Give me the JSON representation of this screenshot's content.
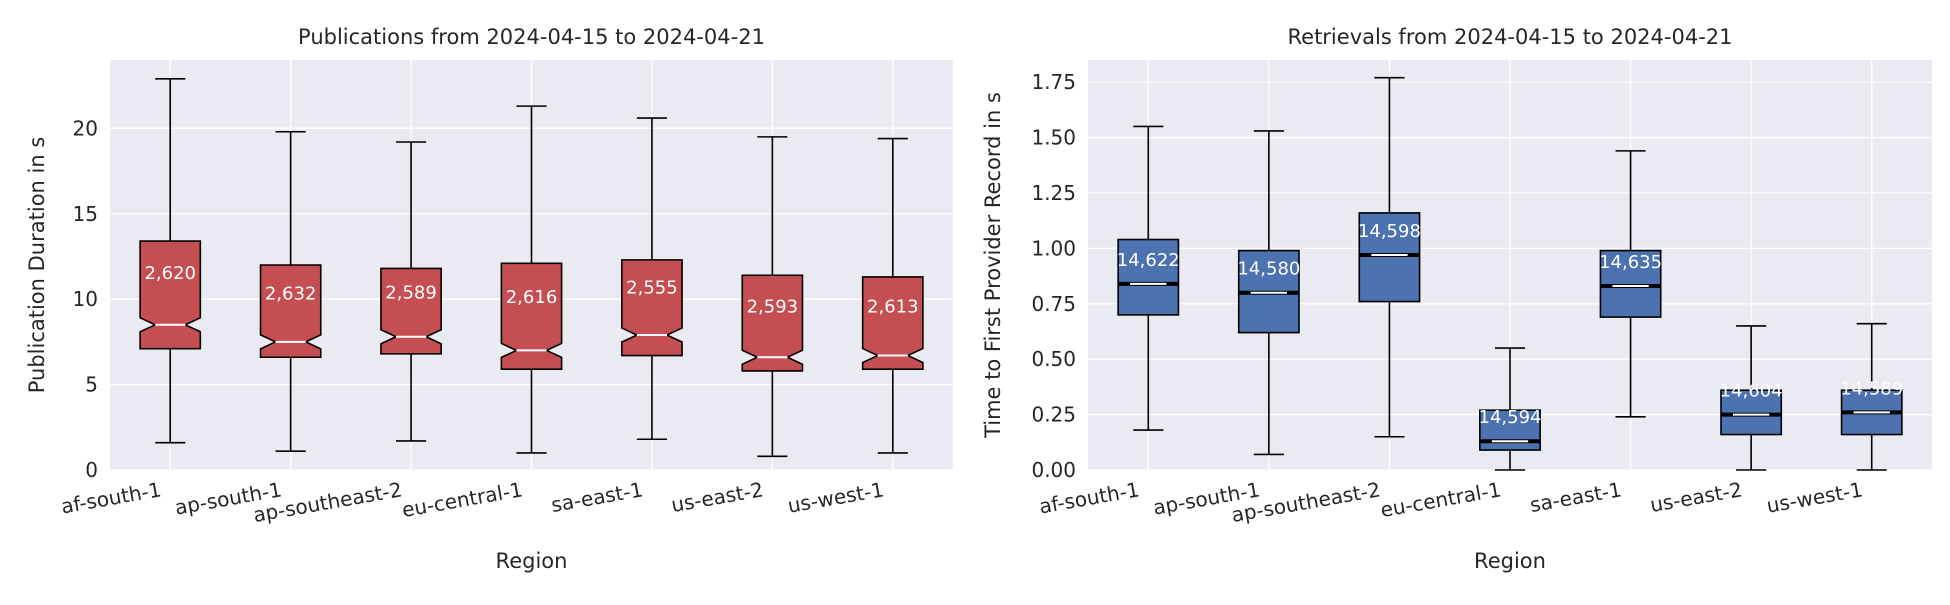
{
  "chart_data": [
    {
      "type": "boxplot",
      "title": "Publications from 2024-04-15 to 2024-04-21",
      "xlabel": "Region",
      "ylabel": "Publication Duration in s",
      "ylim": [
        0,
        24
      ],
      "yticks": [
        0,
        5,
        10,
        15,
        20
      ],
      "ytick_labels": [
        "0",
        "5",
        "10",
        "15",
        "20"
      ],
      "grid": true,
      "notched": true,
      "box_color": "#c44e52",
      "median_color": "#ffffff",
      "label_color": "#ffffff",
      "categories": [
        "af-south-1",
        "ap-south-1",
        "ap-southeast-2",
        "eu-central-1",
        "sa-east-1",
        "us-east-2",
        "us-west-1"
      ],
      "boxes": [
        {
          "whislo": 1.6,
          "q1": 7.1,
          "med": 8.5,
          "q3": 13.4,
          "whishi": 22.9,
          "count": "2,620"
        },
        {
          "whislo": 1.1,
          "q1": 6.6,
          "med": 7.5,
          "q3": 12.0,
          "whishi": 19.8,
          "count": "2,632"
        },
        {
          "whislo": 1.7,
          "q1": 6.8,
          "med": 7.8,
          "q3": 11.8,
          "whishi": 19.2,
          "count": "2,589"
        },
        {
          "whislo": 1.0,
          "q1": 5.9,
          "med": 7.0,
          "q3": 12.1,
          "whishi": 21.3,
          "count": "2,616"
        },
        {
          "whislo": 1.8,
          "q1": 6.7,
          "med": 7.9,
          "q3": 12.3,
          "whishi": 20.6,
          "count": "2,555"
        },
        {
          "whislo": 0.8,
          "q1": 5.8,
          "med": 6.6,
          "q3": 11.4,
          "whishi": 19.5,
          "count": "2,593"
        },
        {
          "whislo": 1.0,
          "q1": 5.9,
          "med": 6.7,
          "q3": 11.3,
          "whishi": 19.4,
          "count": "2,613"
        }
      ]
    },
    {
      "type": "boxplot",
      "title": "Retrievals from 2024-04-15 to 2024-04-21",
      "xlabel": "Region",
      "ylabel": "Time to First Provider Record in s",
      "ylim": [
        0,
        1.85
      ],
      "yticks": [
        0,
        0.25,
        0.5,
        0.75,
        1.0,
        1.25,
        1.5,
        1.75
      ],
      "ytick_labels": [
        "0.00",
        "0.25",
        "0.50",
        "0.75",
        "1.00",
        "1.25",
        "1.50",
        "1.75"
      ],
      "grid": true,
      "notched": false,
      "box_color": "#4c72b0",
      "median_color": "#ffffff",
      "label_color": "#ffffff",
      "categories": [
        "af-south-1",
        "ap-south-1",
        "ap-southeast-2",
        "eu-central-1",
        "sa-east-1",
        "us-east-2",
        "us-west-1"
      ],
      "boxes": [
        {
          "whislo": 0.18,
          "q1": 0.7,
          "med": 0.84,
          "q3": 1.04,
          "whishi": 1.55,
          "count": "14,622"
        },
        {
          "whislo": 0.07,
          "q1": 0.62,
          "med": 0.8,
          "q3": 0.99,
          "whishi": 1.53,
          "count": "14,580"
        },
        {
          "whislo": 0.15,
          "q1": 0.76,
          "med": 0.97,
          "q3": 1.16,
          "whishi": 1.77,
          "count": "14,598"
        },
        {
          "whislo": 0.0,
          "q1": 0.09,
          "med": 0.13,
          "q3": 0.27,
          "whishi": 0.55,
          "count": "14,594"
        },
        {
          "whislo": 0.24,
          "q1": 0.69,
          "med": 0.83,
          "q3": 0.99,
          "whishi": 1.44,
          "count": "14,635"
        },
        {
          "whislo": 0.0,
          "q1": 0.16,
          "med": 0.25,
          "q3": 0.36,
          "whishi": 0.65,
          "count": "14,604"
        },
        {
          "whislo": 0.0,
          "q1": 0.16,
          "med": 0.26,
          "q3": 0.36,
          "whishi": 0.66,
          "count": "14,589"
        }
      ]
    }
  ]
}
